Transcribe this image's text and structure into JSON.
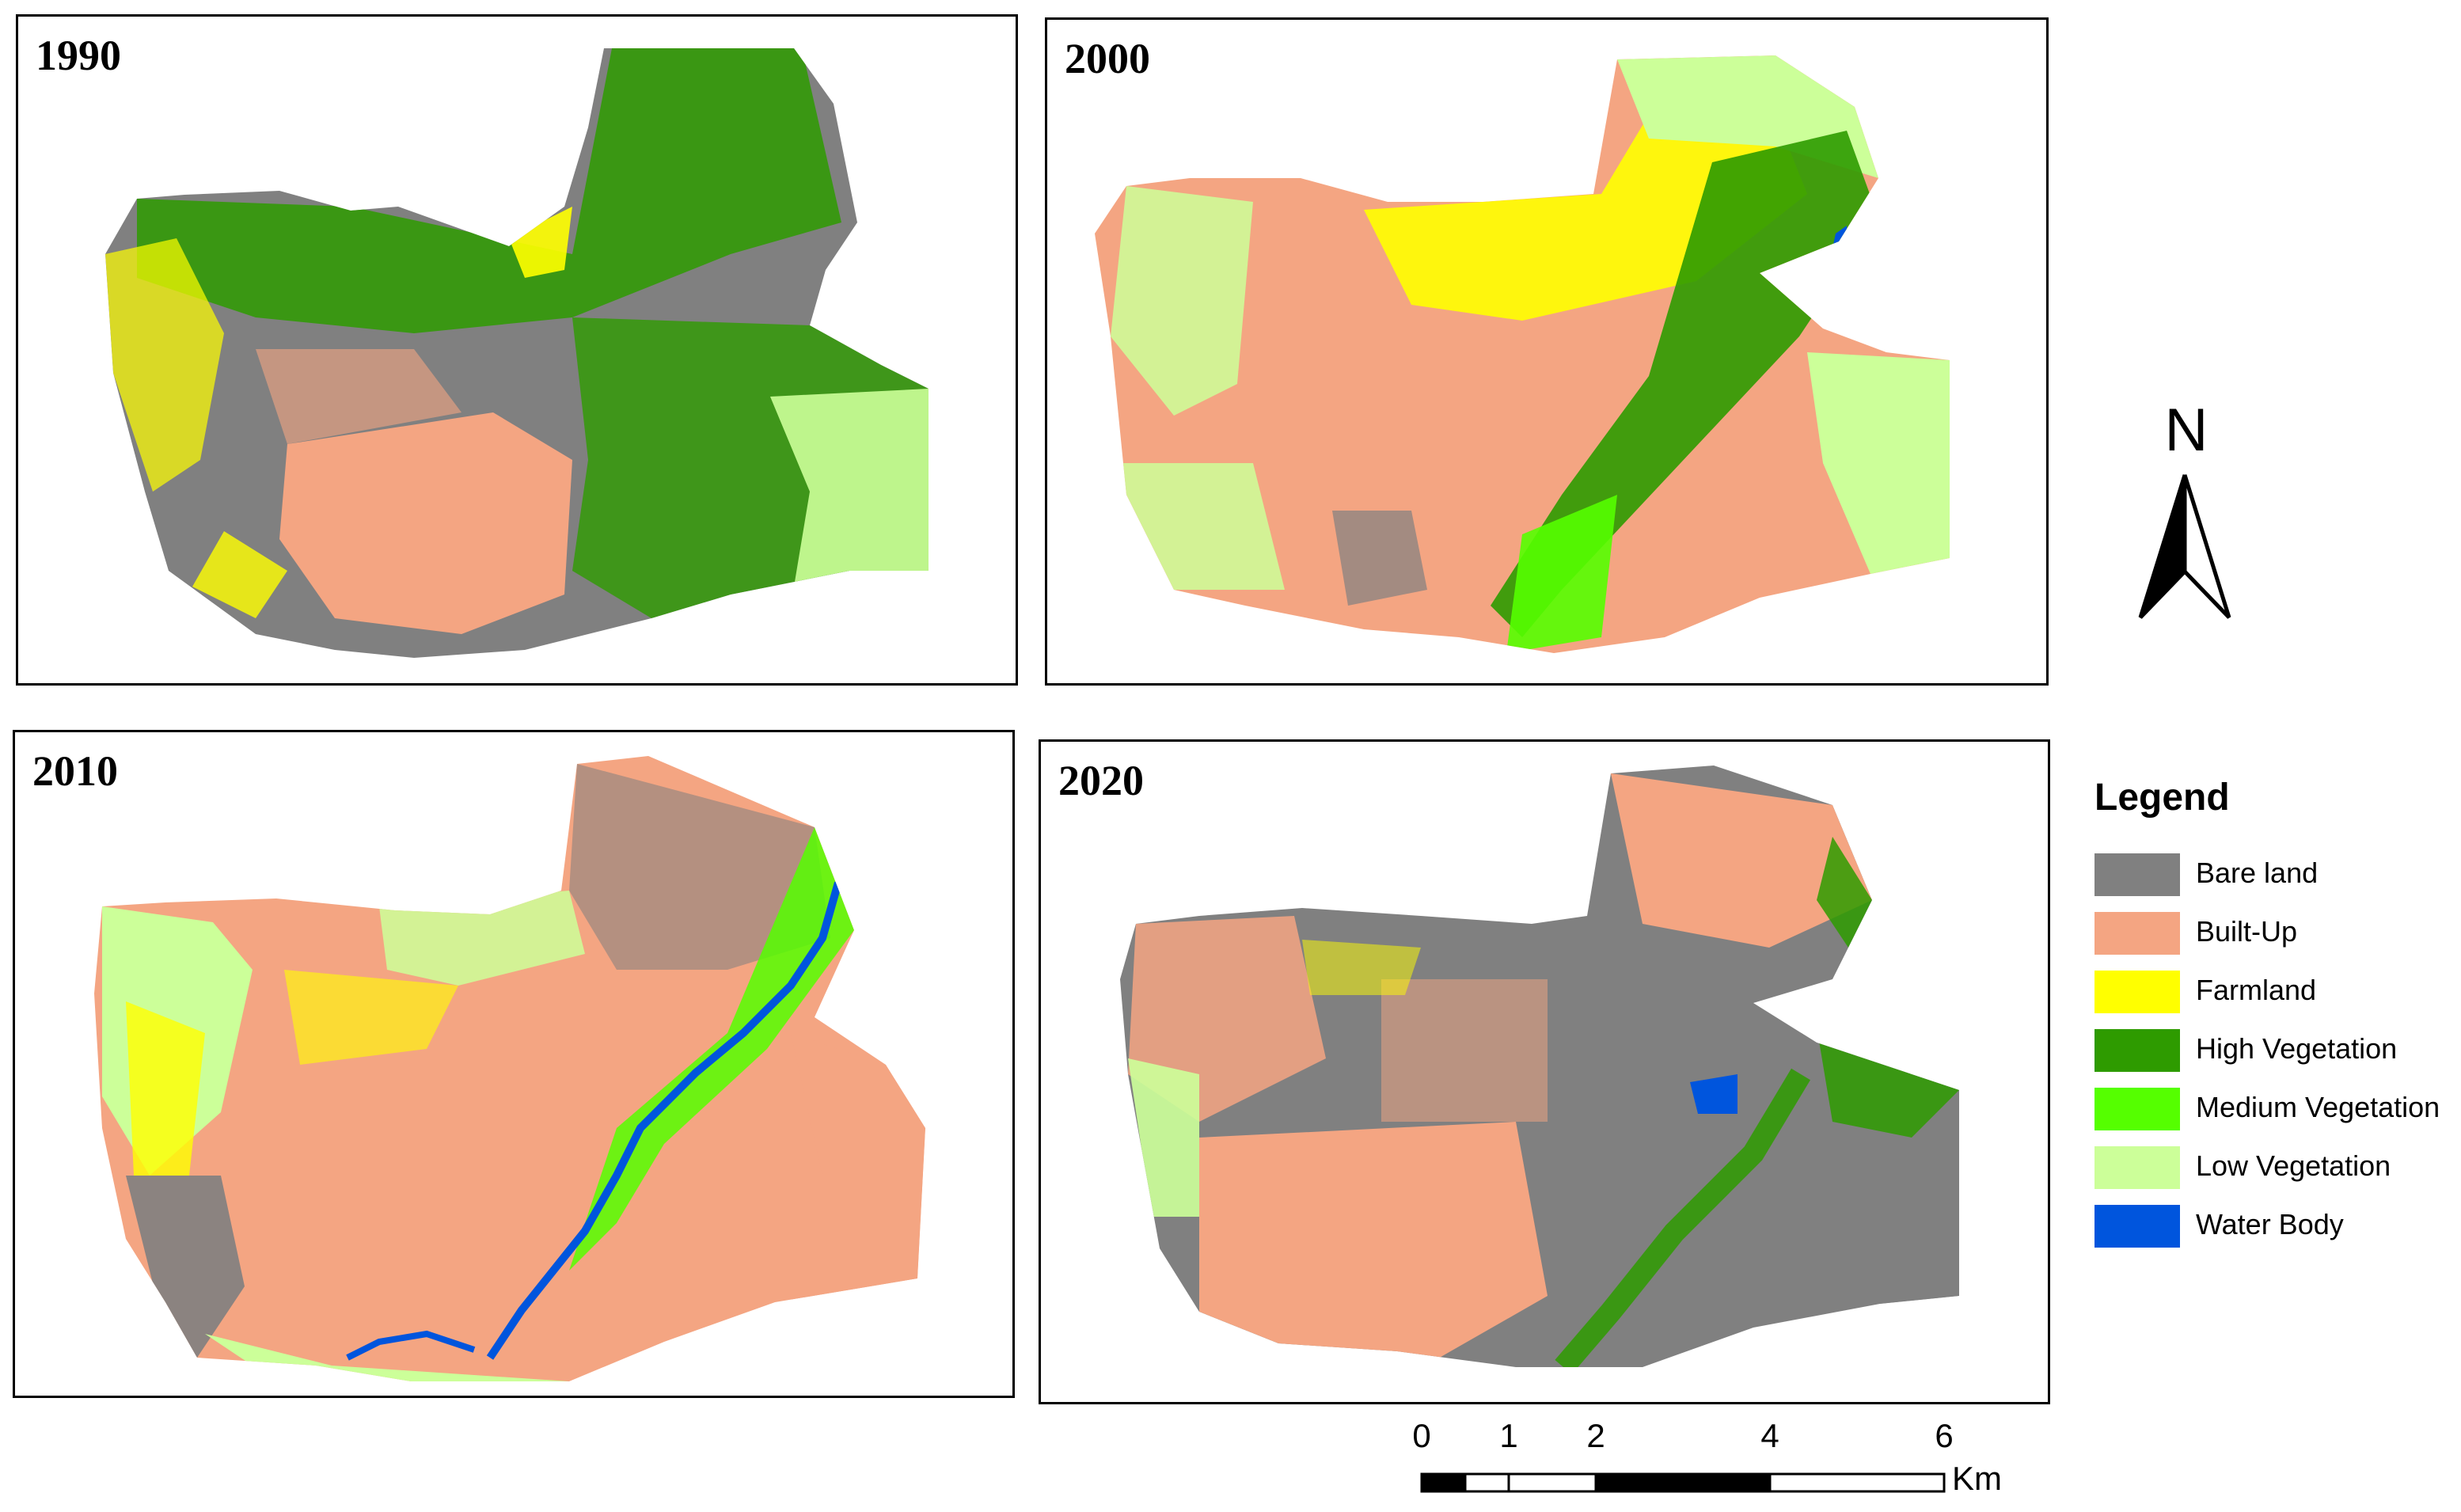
{
  "panels": [
    {
      "id": "p1990",
      "year": "1990"
    },
    {
      "id": "p2000",
      "year": "2000"
    },
    {
      "id": "p2010",
      "year": "2010"
    },
    {
      "id": "p2020",
      "year": "2020"
    }
  ],
  "north_arrow": {
    "label": "N"
  },
  "legend": {
    "title": "Legend",
    "items": [
      {
        "label": "Bare land",
        "color": "#808080"
      },
      {
        "label": "Built-Up",
        "color": "#F4A582"
      },
      {
        "label": "Farmland",
        "color": "#FFFF00"
      },
      {
        "label": "High Vegetation",
        "color": "#2E9B00"
      },
      {
        "label": "Medium Vegetation",
        "color": "#55FF00"
      },
      {
        "label": "Low Vegetation",
        "color": "#CCFF99"
      },
      {
        "label": "Water Body",
        "color": "#0055DD"
      }
    ]
  },
  "scale_bar": {
    "ticks": [
      "0",
      "1",
      "2",
      "4",
      "6"
    ],
    "unit": "Km"
  }
}
